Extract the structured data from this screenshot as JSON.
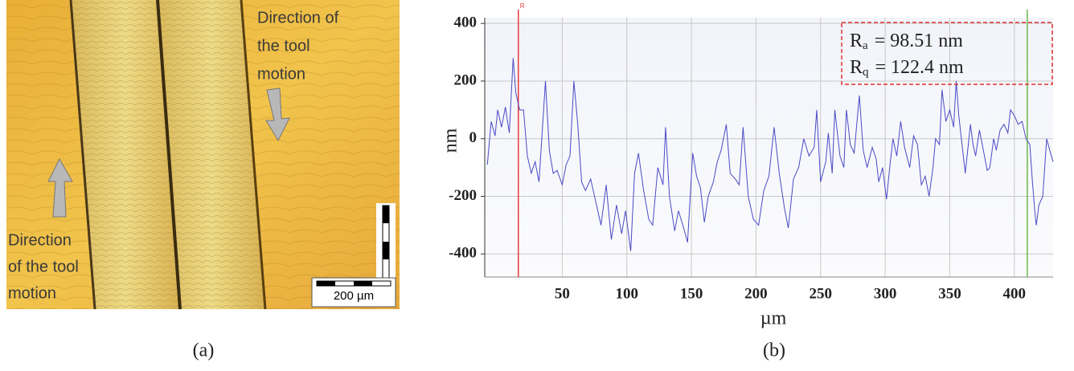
{
  "panel_a": {
    "label": "(a)",
    "annotations": [
      {
        "lines": [
          "Direction of",
          "the tool",
          "motion"
        ]
      },
      {
        "lines": [
          "Direction",
          "of the tool",
          "motion"
        ]
      }
    ],
    "scale_bar": "200 µm"
  },
  "panel_b": {
    "label": "(b)"
  },
  "chart_data": {
    "type": "line",
    "xlabel": "µm",
    "ylabel": "nm",
    "xlim": [
      -10,
      430
    ],
    "ylim": [
      -480,
      420
    ],
    "xticks": [
      50,
      100,
      150,
      200,
      250,
      300,
      350,
      400
    ],
    "yticks": [
      -400,
      -200,
      0,
      200,
      400
    ],
    "grid": true,
    "color": "#4a4ac6",
    "cursors": [
      {
        "label": "R",
        "x": 16,
        "color": "#e83a3a"
      },
      {
        "x": 410,
        "color": "#6cb84a"
      }
    ],
    "annotations": [
      {
        "symbol": "R",
        "subscript": "a",
        "text": "= 98.51 nm"
      },
      {
        "symbol": "R",
        "subscript": "q",
        "text": "= 122.4 nm"
      }
    ],
    "x": [
      -8,
      -5,
      -2,
      0,
      3,
      6,
      9,
      12,
      14,
      17,
      20,
      23,
      26,
      29,
      32,
      35,
      37,
      40,
      43,
      46,
      50,
      53,
      56,
      59,
      62,
      65,
      68,
      72,
      76,
      80,
      84,
      88,
      92,
      96,
      99,
      103,
      106,
      109,
      113,
      117,
      120,
      124,
      128,
      130,
      133,
      137,
      140,
      144,
      147,
      151,
      154,
      157,
      160,
      163,
      167,
      170,
      173,
      177,
      180,
      184,
      187,
      190,
      194,
      198,
      202,
      206,
      210,
      214,
      218,
      222,
      225,
      229,
      233,
      237,
      241,
      245,
      247,
      250,
      254,
      256,
      259,
      261,
      265,
      268,
      270,
      273,
      276,
      280,
      283,
      286,
      290,
      293,
      295,
      298,
      301,
      304,
      306,
      309,
      312,
      315,
      319,
      322,
      325,
      328,
      331,
      334,
      337,
      339,
      342,
      344,
      347,
      350,
      353,
      355,
      357,
      359,
      362,
      366,
      368,
      370,
      373,
      376,
      379,
      381,
      384,
      386,
      389,
      392,
      395,
      397,
      400,
      403,
      406,
      409,
      412,
      414,
      416,
      417,
      419,
      422,
      425,
      428,
      430
    ],
    "values": [
      -90,
      60,
      10,
      100,
      40,
      110,
      20,
      280,
      160,
      100,
      100,
      -60,
      -120,
      -80,
      -150,
      60,
      200,
      -40,
      -120,
      -110,
      -160,
      -90,
      -60,
      200,
      50,
      -150,
      -180,
      -140,
      -220,
      -300,
      -160,
      -350,
      -230,
      -330,
      -250,
      -390,
      -120,
      -50,
      -180,
      -280,
      -300,
      -100,
      -160,
      40,
      -200,
      -320,
      -250,
      -310,
      -360,
      -50,
      -130,
      -170,
      -290,
      -200,
      -150,
      -80,
      -40,
      50,
      -120,
      -140,
      -160,
      40,
      -200,
      -280,
      -300,
      -180,
      -130,
      40,
      -120,
      -240,
      -310,
      -140,
      -100,
      0,
      -60,
      -30,
      100,
      -150,
      -80,
      20,
      -120,
      100,
      -60,
      -100,
      100,
      -20,
      -50,
      150,
      -40,
      -100,
      -30,
      -70,
      -150,
      -100,
      -210,
      -80,
      0,
      -60,
      60,
      -30,
      -100,
      10,
      -20,
      -160,
      -130,
      -200,
      -100,
      0,
      -20,
      170,
      60,
      100,
      40,
      200,
      80,
      0,
      -120,
      50,
      -20,
      -60,
      30,
      -40,
      -110,
      -100,
      0,
      -40,
      30,
      50,
      20,
      100,
      80,
      50,
      60,
      0,
      -20,
      -150,
      -260,
      -300,
      -230,
      -200,
      0,
      -50,
      -80
    ]
  }
}
